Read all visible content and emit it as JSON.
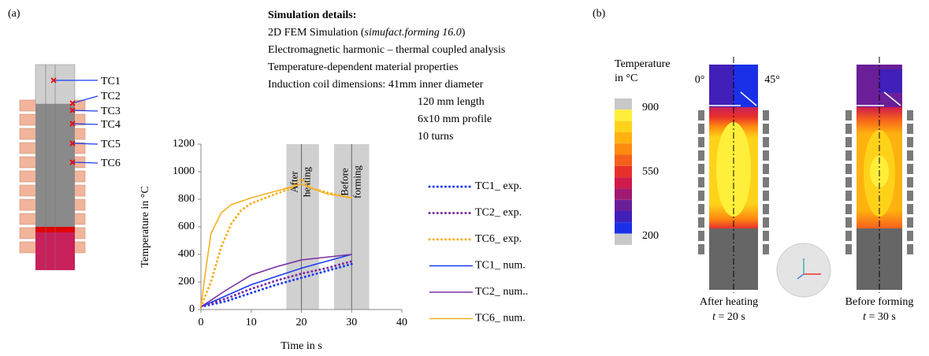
{
  "panel_labels": {
    "a": "(a)",
    "b": "(b)"
  },
  "schematic": {
    "labels": [
      "TC1",
      "TC2",
      "TC3",
      "TC4",
      "TC5",
      "TC6"
    ]
  },
  "details": {
    "title": "Simulation details:",
    "line1": {
      "pre": "2D FEM Simulation (",
      "italic": "simufact.forming 16.0",
      "post": ")"
    },
    "lines": [
      "Electromagnetic harmonic – thermal coupled analysis",
      "Temperature-dependent material properties",
      "Induction coil dimensions: 41mm inner diameter"
    ],
    "coil": [
      "120 mm length",
      "6x10 mm profile",
      "10 turns"
    ]
  },
  "chart_data": {
    "type": "line",
    "x_label": "Time in s",
    "y_label": "Temperature in °C",
    "xlim": [
      0,
      40
    ],
    "xticks": [
      0,
      10,
      20,
      30,
      40
    ],
    "ylim": [
      0,
      1200
    ],
    "yticks": [
      0,
      200,
      400,
      600,
      800,
      1000,
      1200
    ],
    "bands": [
      [
        17,
        23.5
      ],
      [
        26.5,
        33.5
      ]
    ],
    "band_color": "#d0d0d0",
    "annotations": [
      {
        "x": 20,
        "text": [
          "After",
          "heating"
        ]
      },
      {
        "x": 30,
        "text": [
          "Before",
          "forming"
        ]
      }
    ],
    "series": [
      {
        "name": "TC1_ exp.",
        "color": "#1a3cf0",
        "dash": "dotted",
        "x": [
          0,
          5,
          10,
          15,
          20,
          25,
          30
        ],
        "values": [
          20,
          60,
          120,
          180,
          230,
          280,
          330
        ]
      },
      {
        "name": "TC2_ exp.",
        "color": "#7b2fa3",
        "dash": "dotted",
        "x": [
          0,
          5,
          10,
          15,
          20,
          25,
          30
        ],
        "values": [
          20,
          80,
          150,
          210,
          260,
          300,
          350
        ]
      },
      {
        "name": "TC6_ exp.",
        "color": "#f5b120",
        "dash": "dotted",
        "x": [
          0,
          2,
          4,
          6,
          8,
          10,
          15,
          18,
          20,
          22,
          25,
          30
        ],
        "values": [
          20,
          200,
          450,
          620,
          720,
          770,
          840,
          880,
          950,
          880,
          850,
          810
        ]
      },
      {
        "name": "TC1_ num.",
        "color": "#1a3cf0",
        "dash": "solid",
        "x": [
          0,
          5,
          10,
          15,
          20,
          25,
          30
        ],
        "values": [
          20,
          100,
          180,
          240,
          300,
          350,
          400
        ]
      },
      {
        "name": "TC2_ num..",
        "color": "#7b2fa3",
        "dash": "solid",
        "x": [
          0,
          5,
          10,
          15,
          20,
          25,
          30
        ],
        "values": [
          20,
          140,
          250,
          310,
          360,
          380,
          400
        ]
      },
      {
        "name": "TC6_ num.",
        "color": "#f5b120",
        "dash": "solid",
        "x": [
          0,
          1,
          2,
          4,
          6,
          10,
          15,
          19,
          20,
          22,
          25,
          30
        ],
        "values": [
          20,
          300,
          550,
          700,
          760,
          810,
          860,
          900,
          910,
          880,
          840,
          810
        ]
      }
    ]
  },
  "colorbar": {
    "title": [
      "Temperature",
      "in °C"
    ],
    "lim": [
      200,
      900
    ],
    "ticks": [
      900,
      550,
      200
    ],
    "colors": [
      "#c8c8c8",
      "#ffef3a",
      "#ffd21a",
      "#ffb20f",
      "#ff8a10",
      "#f5601c",
      "#e8302a",
      "#d01a4a",
      "#a01a70",
      "#6a1f98",
      "#4020b8",
      "#1a30e8",
      "#c8c8c8"
    ]
  },
  "contours": {
    "angles": [
      "0°",
      "45°"
    ],
    "left": {
      "caption": "After heating",
      "time": {
        "t": "t",
        "rest": " = 20 s"
      }
    },
    "right": {
      "caption": "Before forming",
      "time": {
        "t": "t",
        "rest": " = 30 s"
      }
    }
  }
}
